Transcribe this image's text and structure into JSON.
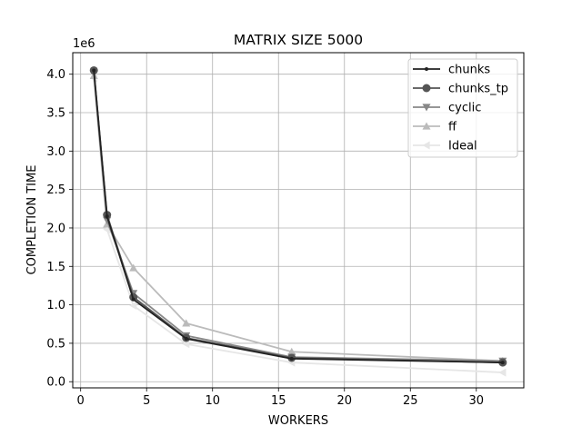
{
  "chart_data": {
    "type": "line",
    "title": "MATRIX SIZE 5000",
    "xlabel": "WORKERS",
    "ylabel": "COMPLETION TIME",
    "y_offset_label": "1e6",
    "xlim": [
      -0.6,
      33.6
    ],
    "ylim": [
      -0.08,
      4.28
    ],
    "xticks": [
      0,
      5,
      10,
      15,
      20,
      25,
      30
    ],
    "xtick_labels": [
      "0",
      "5",
      "10",
      "15",
      "20",
      "25",
      "30"
    ],
    "yticks": [
      0.0,
      0.5,
      1.0,
      1.5,
      2.0,
      2.5,
      3.0,
      3.5,
      4.0
    ],
    "ytick_labels": [
      "0.0",
      "0.5",
      "1.0",
      "1.5",
      "2.0",
      "2.5",
      "3.0",
      "3.5",
      "4.0"
    ],
    "grid": true,
    "legend_position": "top-right",
    "x": [
      1,
      2,
      4,
      8,
      16,
      32
    ],
    "series": [
      {
        "name": "chunks",
        "marker": "dot",
        "color": "#222222",
        "values": [
          4.05,
          2.15,
          1.07,
          0.56,
          0.3,
          0.25
        ]
      },
      {
        "name": "chunks_tp",
        "marker": "circle",
        "color": "#555555",
        "values": [
          4.05,
          2.17,
          1.1,
          0.57,
          0.31,
          0.25
        ]
      },
      {
        "name": "cyclic",
        "marker": "triangle-down",
        "color": "#888888",
        "values": [
          4.02,
          2.1,
          1.15,
          0.6,
          0.32,
          0.27
        ]
      },
      {
        "name": "ff",
        "marker": "triangle-up",
        "color": "#bbbbbb",
        "values": [
          3.98,
          2.05,
          1.48,
          0.76,
          0.39,
          0.27
        ]
      },
      {
        "name": "Ideal",
        "marker": "triangle-left",
        "color": "#e6e6e6",
        "values": [
          3.95,
          1.98,
          0.99,
          0.49,
          0.25,
          0.12
        ]
      }
    ]
  }
}
